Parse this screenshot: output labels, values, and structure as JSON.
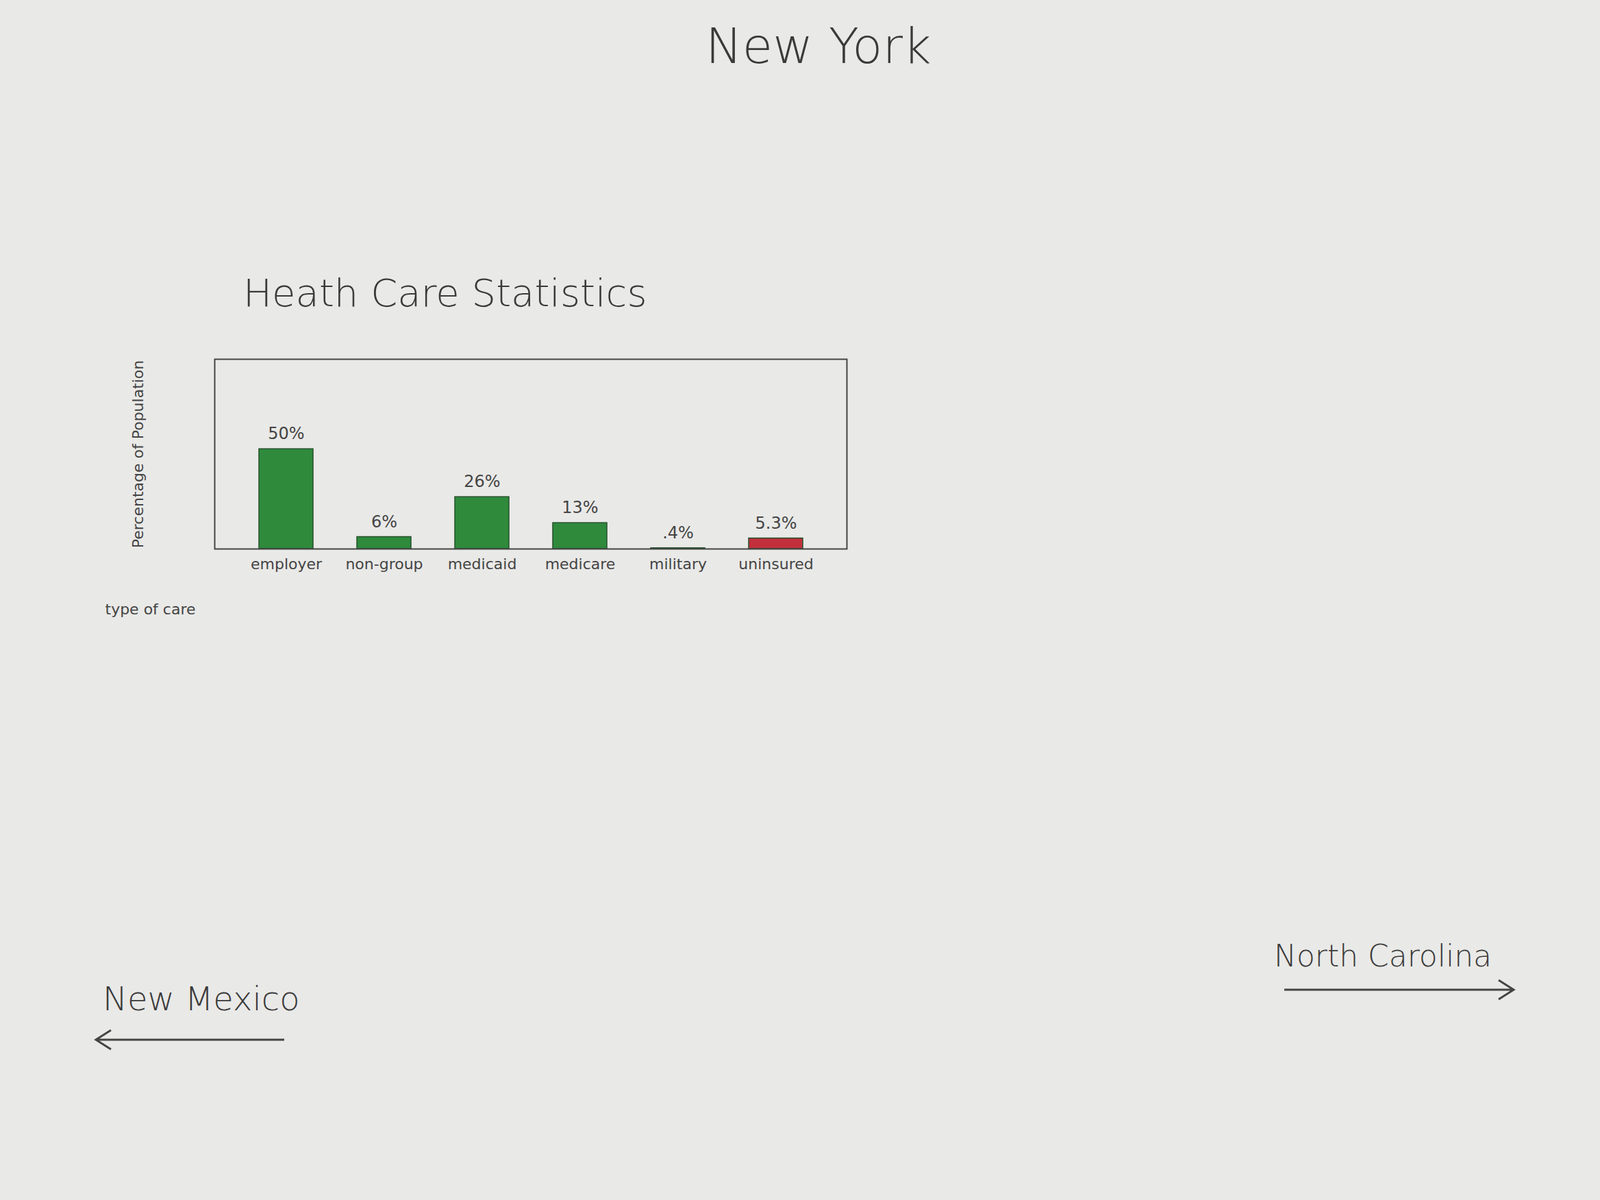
{
  "chart_data": {
    "type": "bar",
    "title": "Heath Care Statistics",
    "x_label": "type of care",
    "y_label": "Percentage of Population",
    "categories": [
      "employer",
      "non-group",
      "medicaid",
      "medicare",
      "military",
      "uninsured"
    ],
    "values": [
      50,
      6,
      26,
      13,
      0.4,
      5.3
    ],
    "value_labels": [
      "50%",
      "6%",
      "26%",
      "13%",
      ".4%",
      "5.3%"
    ],
    "colors": [
      "#2f8a3c",
      "#2f8a3c",
      "#2f8a3c",
      "#2f8a3c",
      "#555555",
      "#c2303c"
    ],
    "ylim": [
      0,
      95
    ],
    "yticks": [],
    "data_labels": true,
    "tick_labels": "x",
    "grid": false
  },
  "page": {
    "heading": "New York",
    "previous": "New Mexico",
    "next": "North Carolina"
  }
}
